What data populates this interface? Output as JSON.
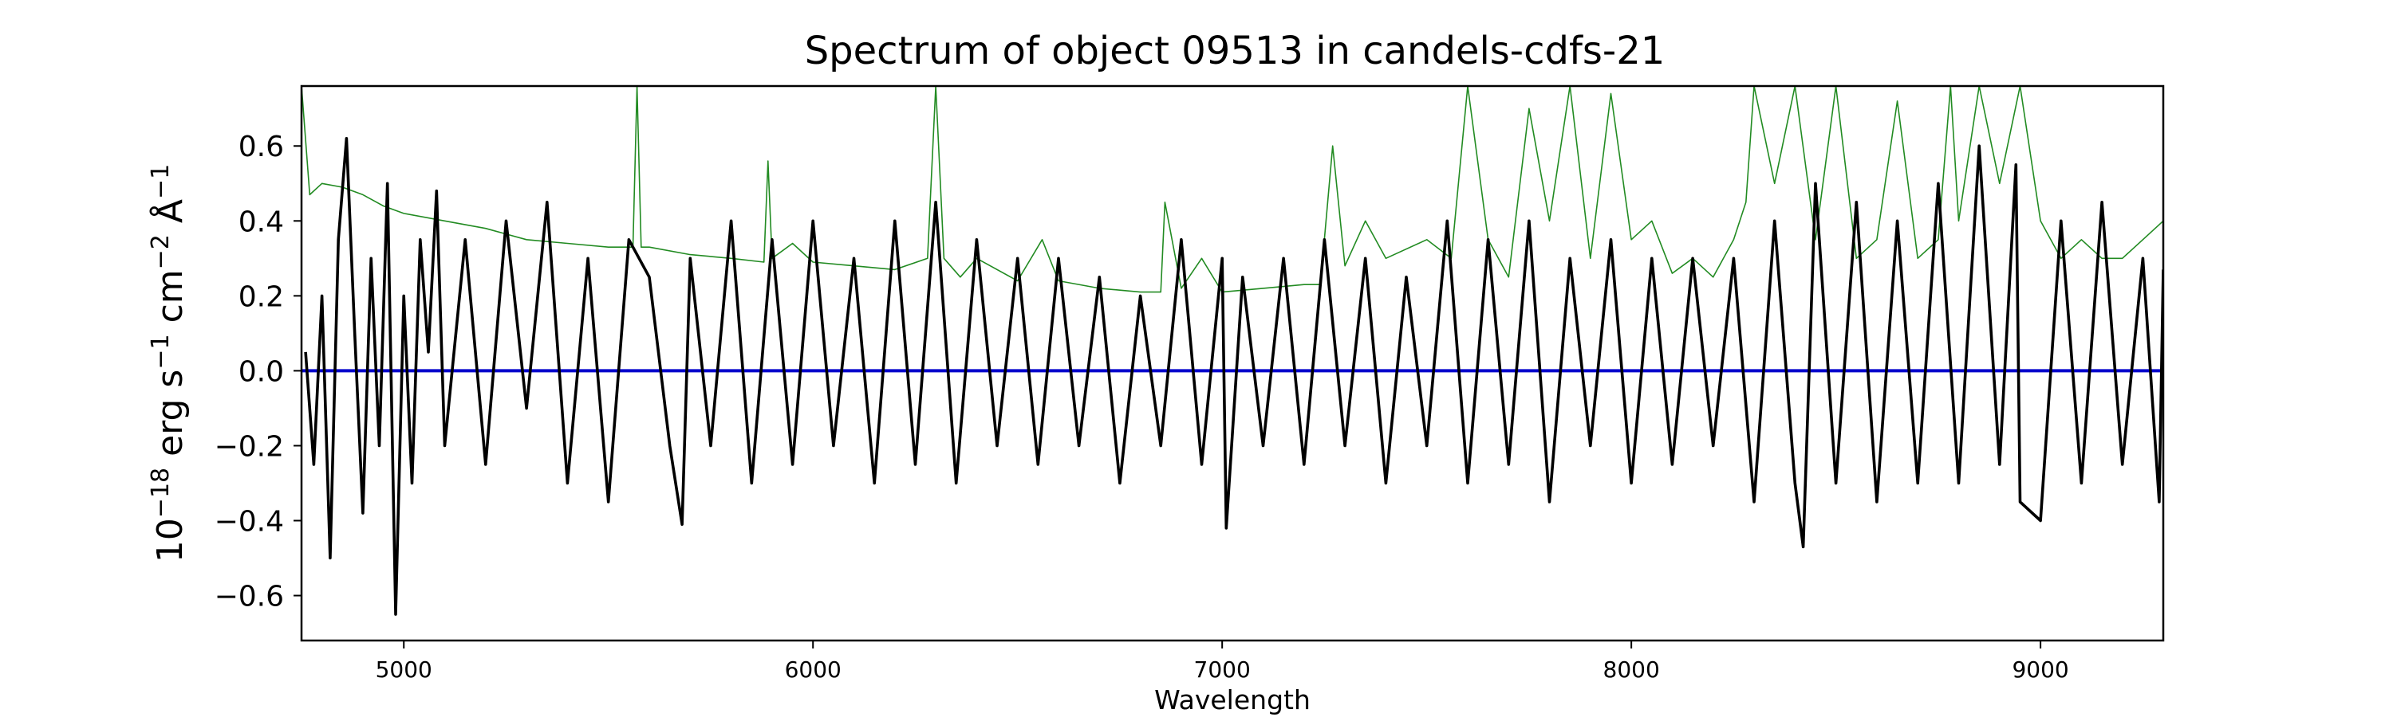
{
  "chart_data": {
    "type": "line",
    "title": "Spectrum of object 09513 in candels-cdfs-21",
    "xlabel": "Wavelength",
    "ylabel": {
      "base": "10",
      "exponent": "−18",
      "text": " erg s",
      "s_exp": "−1",
      "cm": " cm",
      "cm_exp": "−2",
      "angstrom": " Å",
      "a_exp": "−1"
    },
    "xlim": [
      4750,
      9300
    ],
    "ylim": [
      -0.72,
      0.76
    ],
    "x_ticks": [
      5000,
      6000,
      7000,
      8000,
      9000
    ],
    "y_ticks": [
      -0.6,
      -0.4,
      -0.2,
      0.0,
      0.2,
      0.4,
      0.6
    ],
    "x_tick_labels": [
      "5000",
      "6000",
      "7000",
      "8000",
      "9000"
    ],
    "y_tick_labels": [
      "−0.6",
      "−0.4",
      "−0.2",
      "0.0",
      "0.2",
      "0.4",
      "0.6"
    ],
    "grid": false,
    "legend": "none",
    "series": [
      {
        "role": "noise",
        "color": "#228b22",
        "x": [
          4750,
          4770,
          4800,
          4850,
          4900,
          4950,
          5000,
          5100,
          5200,
          5300,
          5400,
          5500,
          5560,
          5570,
          5580,
          5600,
          5700,
          5800,
          5880,
          5890,
          5900,
          5950,
          6000,
          6100,
          6200,
          6280,
          6300,
          6320,
          6360,
          6400,
          6500,
          6560,
          6600,
          6700,
          6800,
          6850,
          6860,
          6900,
          6950,
          7000,
          7100,
          7200,
          7240,
          7270,
          7300,
          7350,
          7400,
          7500,
          7560,
          7600,
          7650,
          7700,
          7750,
          7800,
          7850,
          7900,
          7950,
          8000,
          8050,
          8100,
          8150,
          8200,
          8250,
          8280,
          8300,
          8350,
          8400,
          8450,
          8500,
          8550,
          8600,
          8650,
          8700,
          8750,
          8780,
          8800,
          8850,
          8900,
          8950,
          9000,
          9050,
          9100,
          9150,
          9200,
          9250,
          9300
        ],
        "y": [
          0.76,
          0.47,
          0.5,
          0.49,
          0.47,
          0.44,
          0.42,
          0.4,
          0.38,
          0.35,
          0.34,
          0.33,
          0.33,
          0.76,
          0.33,
          0.33,
          0.31,
          0.3,
          0.29,
          0.56,
          0.3,
          0.34,
          0.29,
          0.28,
          0.27,
          0.3,
          0.76,
          0.3,
          0.25,
          0.3,
          0.24,
          0.35,
          0.24,
          0.22,
          0.21,
          0.21,
          0.45,
          0.22,
          0.3,
          0.21,
          0.22,
          0.23,
          0.23,
          0.6,
          0.28,
          0.4,
          0.3,
          0.35,
          0.3,
          0.76,
          0.35,
          0.25,
          0.7,
          0.4,
          0.76,
          0.3,
          0.74,
          0.35,
          0.4,
          0.26,
          0.3,
          0.25,
          0.35,
          0.45,
          0.76,
          0.5,
          0.76,
          0.35,
          0.76,
          0.3,
          0.35,
          0.72,
          0.3,
          0.35,
          0.76,
          0.4,
          0.76,
          0.5,
          0.76,
          0.4,
          0.3,
          0.35,
          0.3,
          0.3,
          0.35,
          0.4
        ]
      },
      {
        "role": "flux",
        "color": "#000000",
        "x": [
          4760,
          4780,
          4800,
          4820,
          4840,
          4860,
          4880,
          4900,
          4920,
          4940,
          4960,
          4980,
          5000,
          5020,
          5040,
          5060,
          5080,
          5100,
          5150,
          5200,
          5250,
          5300,
          5350,
          5400,
          5450,
          5500,
          5550,
          5600,
          5650,
          5680,
          5700,
          5750,
          5800,
          5850,
          5900,
          5950,
          6000,
          6050,
          6100,
          6150,
          6200,
          6250,
          6300,
          6350,
          6400,
          6450,
          6500,
          6550,
          6600,
          6650,
          6700,
          6750,
          6800,
          6850,
          6900,
          6950,
          7000,
          7010,
          7050,
          7100,
          7150,
          7200,
          7250,
          7300,
          7350,
          7400,
          7450,
          7500,
          7550,
          7600,
          7650,
          7700,
          7750,
          7800,
          7850,
          7900,
          7950,
          8000,
          8050,
          8100,
          8150,
          8200,
          8250,
          8300,
          8350,
          8400,
          8420,
          8450,
          8500,
          8550,
          8600,
          8650,
          8700,
          8750,
          8800,
          8850,
          8900,
          8940,
          8950,
          9000,
          9050,
          9100,
          9150,
          9200,
          9250,
          9290,
          9300
        ],
        "y": [
          0.05,
          -0.25,
          0.2,
          -0.5,
          0.35,
          0.62,
          0.1,
          -0.38,
          0.3,
          -0.2,
          0.5,
          -0.65,
          0.2,
          -0.3,
          0.35,
          0.05,
          0.48,
          -0.2,
          0.35,
          -0.25,
          0.4,
          -0.1,
          0.45,
          -0.3,
          0.3,
          -0.35,
          0.35,
          0.25,
          -0.2,
          -0.41,
          0.3,
          -0.2,
          0.4,
          -0.3,
          0.35,
          -0.25,
          0.4,
          -0.2,
          0.3,
          -0.3,
          0.4,
          -0.25,
          0.45,
          -0.3,
          0.35,
          -0.2,
          0.3,
          -0.25,
          0.3,
          -0.2,
          0.25,
          -0.3,
          0.2,
          -0.2,
          0.35,
          -0.25,
          0.3,
          -0.42,
          0.25,
          -0.2,
          0.3,
          -0.25,
          0.35,
          -0.2,
          0.3,
          -0.3,
          0.25,
          -0.2,
          0.4,
          -0.3,
          0.35,
          -0.25,
          0.4,
          -0.35,
          0.3,
          -0.2,
          0.35,
          -0.3,
          0.3,
          -0.25,
          0.3,
          -0.2,
          0.3,
          -0.35,
          0.4,
          -0.3,
          -0.47,
          0.5,
          -0.3,
          0.45,
          -0.35,
          0.4,
          -0.3,
          0.5,
          -0.3,
          0.6,
          -0.25,
          0.55,
          -0.35,
          -0.4,
          0.4,
          -0.3,
          0.45,
          -0.25,
          0.3,
          -0.35,
          0.27
        ]
      },
      {
        "role": "continuum",
        "color": "#0000cc",
        "x": [
          4750,
          9300
        ],
        "y": [
          0.0,
          0.0
        ]
      }
    ]
  }
}
